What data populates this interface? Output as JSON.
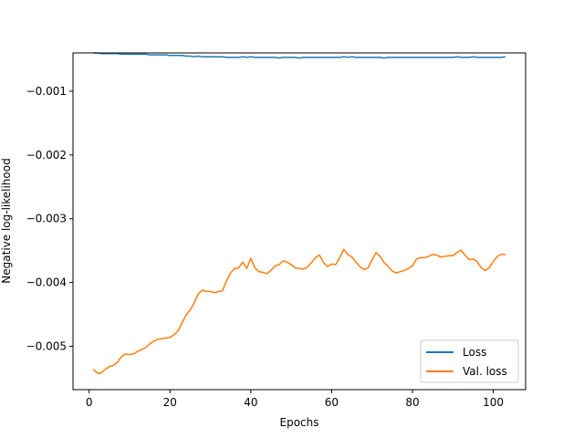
{
  "chart_data": {
    "type": "line",
    "title": "",
    "xlabel": "Epochs",
    "ylabel": "Negative log-likelihood",
    "xlim": [
      -4,
      108
    ],
    "ylim": [
      -0.00568,
      -0.0004
    ],
    "xticks": [
      0,
      20,
      40,
      60,
      80,
      100
    ],
    "yticks": [
      -0.001,
      -0.002,
      -0.003,
      -0.004,
      -0.005
    ],
    "ytick_labels": [
      "−0.001",
      "−0.002",
      "−0.003",
      "−0.004",
      "−0.005"
    ],
    "grid": false,
    "legend_position": "lower-right",
    "x": [
      1,
      2,
      3,
      4,
      5,
      6,
      7,
      8,
      9,
      10,
      11,
      12,
      13,
      14,
      15,
      16,
      17,
      18,
      19,
      20,
      21,
      22,
      23,
      24,
      25,
      26,
      27,
      28,
      29,
      30,
      31,
      32,
      33,
      34,
      35,
      36,
      37,
      38,
      39,
      40,
      41,
      42,
      43,
      44,
      45,
      46,
      47,
      48,
      49,
      50,
      51,
      52,
      53,
      54,
      55,
      56,
      57,
      58,
      59,
      60,
      61,
      62,
      63,
      64,
      65,
      66,
      67,
      68,
      69,
      70,
      71,
      72,
      73,
      74,
      75,
      76,
      77,
      78,
      79,
      80,
      81,
      82,
      83,
      84,
      85,
      86,
      87,
      88,
      89,
      90,
      91,
      92,
      93,
      94,
      95,
      96,
      97,
      98,
      99,
      100,
      101,
      102,
      103
    ],
    "series": [
      {
        "name": "Loss",
        "color": "#1f77b4",
        "values": [
          -0.0004,
          -0.0004,
          -0.00041,
          -0.00041,
          -0.00041,
          -0.00041,
          -0.00041,
          -0.00042,
          -0.00042,
          -0.00042,
          -0.00042,
          -0.00042,
          -0.00042,
          -0.00042,
          -0.00043,
          -0.00043,
          -0.00043,
          -0.00043,
          -0.00043,
          -0.00044,
          -0.00044,
          -0.00044,
          -0.00044,
          -0.00045,
          -0.00045,
          -0.00046,
          -0.00045,
          -0.00046,
          -0.00046,
          -0.00046,
          -0.00046,
          -0.00046,
          -0.00046,
          -0.00047,
          -0.00047,
          -0.00047,
          -0.00047,
          -0.00046,
          -0.00047,
          -0.00046,
          -0.00047,
          -0.00047,
          -0.00047,
          -0.00047,
          -0.00047,
          -0.00047,
          -0.00048,
          -0.00047,
          -0.00047,
          -0.00047,
          -0.00047,
          -0.00048,
          -0.00047,
          -0.00047,
          -0.00047,
          -0.00047,
          -0.00047,
          -0.00047,
          -0.00047,
          -0.00047,
          -0.00047,
          -0.00047,
          -0.00046,
          -0.00047,
          -0.00046,
          -0.00047,
          -0.00047,
          -0.00047,
          -0.00047,
          -0.00047,
          -0.00047,
          -0.00047,
          -0.00048,
          -0.00047,
          -0.00047,
          -0.00047,
          -0.00047,
          -0.00047,
          -0.00047,
          -0.00047,
          -0.00047,
          -0.00047,
          -0.00047,
          -0.00047,
          -0.00047,
          -0.00047,
          -0.00047,
          -0.00047,
          -0.00047,
          -0.00047,
          -0.00046,
          -0.00047,
          -0.00047,
          -0.00047,
          -0.00046,
          -0.00047,
          -0.00047,
          -0.00047,
          -0.00047,
          -0.00047,
          -0.00047,
          -0.00047,
          -0.00046
        ]
      },
      {
        "name": "Val. loss",
        "color": "#ff7f0e",
        "values": [
          -0.00536,
          -0.00542,
          -0.00542,
          -0.00536,
          -0.00532,
          -0.0053,
          -0.00525,
          -0.00516,
          -0.00512,
          -0.00513,
          -0.00512,
          -0.00508,
          -0.00505,
          -0.00502,
          -0.00496,
          -0.00492,
          -0.00489,
          -0.00488,
          -0.00487,
          -0.00486,
          -0.00482,
          -0.00476,
          -0.00463,
          -0.00451,
          -0.00443,
          -0.00432,
          -0.00418,
          -0.00412,
          -0.00414,
          -0.00414,
          -0.00416,
          -0.00414,
          -0.00413,
          -0.00397,
          -0.00385,
          -0.00378,
          -0.00377,
          -0.00368,
          -0.00378,
          -0.00362,
          -0.00377,
          -0.00383,
          -0.00384,
          -0.00386,
          -0.00381,
          -0.00374,
          -0.00372,
          -0.00366,
          -0.00368,
          -0.00372,
          -0.00377,
          -0.00378,
          -0.00379,
          -0.00376,
          -0.00369,
          -0.00361,
          -0.00357,
          -0.00369,
          -0.00375,
          -0.00371,
          -0.00372,
          -0.00361,
          -0.00348,
          -0.00356,
          -0.0036,
          -0.00368,
          -0.00375,
          -0.0038,
          -0.00377,
          -0.00365,
          -0.00353,
          -0.00359,
          -0.00369,
          -0.00375,
          -0.00382,
          -0.00385,
          -0.00383,
          -0.00381,
          -0.00378,
          -0.00374,
          -0.00363,
          -0.00361,
          -0.00361,
          -0.00359,
          -0.00356,
          -0.00357,
          -0.0036,
          -0.00359,
          -0.00358,
          -0.00358,
          -0.00353,
          -0.00349,
          -0.00357,
          -0.00364,
          -0.00363,
          -0.00367,
          -0.00377,
          -0.00381,
          -0.00377,
          -0.00367,
          -0.00359,
          -0.00356,
          -0.00356
        ]
      }
    ]
  }
}
